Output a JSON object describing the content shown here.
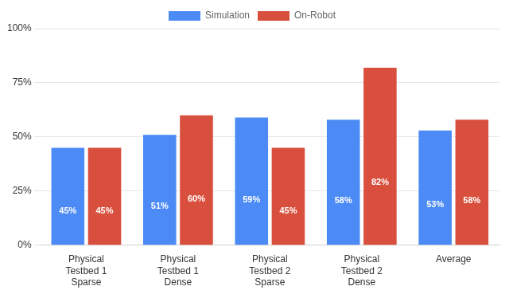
{
  "chart_data": {
    "type": "bar",
    "categories": [
      "Physical\nTestbed 1\nSparse",
      "Physical\nTestbed 1\nDense",
      "Physical\nTestbed 2\nSparse",
      "Physical\nTestbed 2\nDense",
      "Average"
    ],
    "series": [
      {
        "name": "Simulation",
        "color": "#4C8BF5",
        "values": [
          45,
          51,
          59,
          58,
          53
        ],
        "value_labels": [
          "45%",
          "51%",
          "59%",
          "58%",
          "53%"
        ]
      },
      {
        "name": "On-Robot",
        "color": "#D94F3D",
        "values": [
          45,
          60,
          45,
          82,
          58
        ],
        "value_labels": [
          "45%",
          "60%",
          "45%",
          "82%",
          "58%"
        ]
      }
    ],
    "ylim": [
      0,
      100
    ],
    "yticks": [
      {
        "value": 0,
        "label": "0%"
      },
      {
        "value": 25,
        "label": "25%"
      },
      {
        "value": 50,
        "label": "50%"
      },
      {
        "value": 75,
        "label": "75%"
      },
      {
        "value": 100,
        "label": "100%"
      }
    ],
    "grid": true,
    "legend": "top",
    "data_labels": true
  }
}
